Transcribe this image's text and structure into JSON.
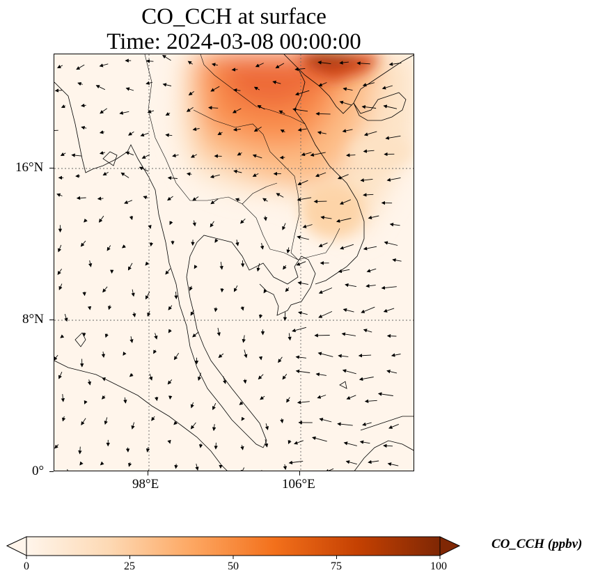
{
  "title": {
    "line1": "CO_CCH at surface",
    "line2": "Time: 2024-03-08 00:00:00"
  },
  "map": {
    "lon_ticks": [
      "98°E",
      "106°E"
    ],
    "lat_ticks": [
      "16°N",
      "8°N",
      "0°"
    ],
    "gridlines": "dotted",
    "colormap": [
      "#fff5eb",
      "#fdd9b4",
      "#fda762",
      "#f3701b",
      "#c54102",
      "#7f2704"
    ],
    "background_color": "#fff5eb"
  },
  "colorbar": {
    "label": "CO_CCH (ppbv)",
    "ticks": [
      "0",
      "25",
      "50",
      "75",
      "100"
    ],
    "min": 0,
    "max": 100,
    "extend": "both"
  }
}
